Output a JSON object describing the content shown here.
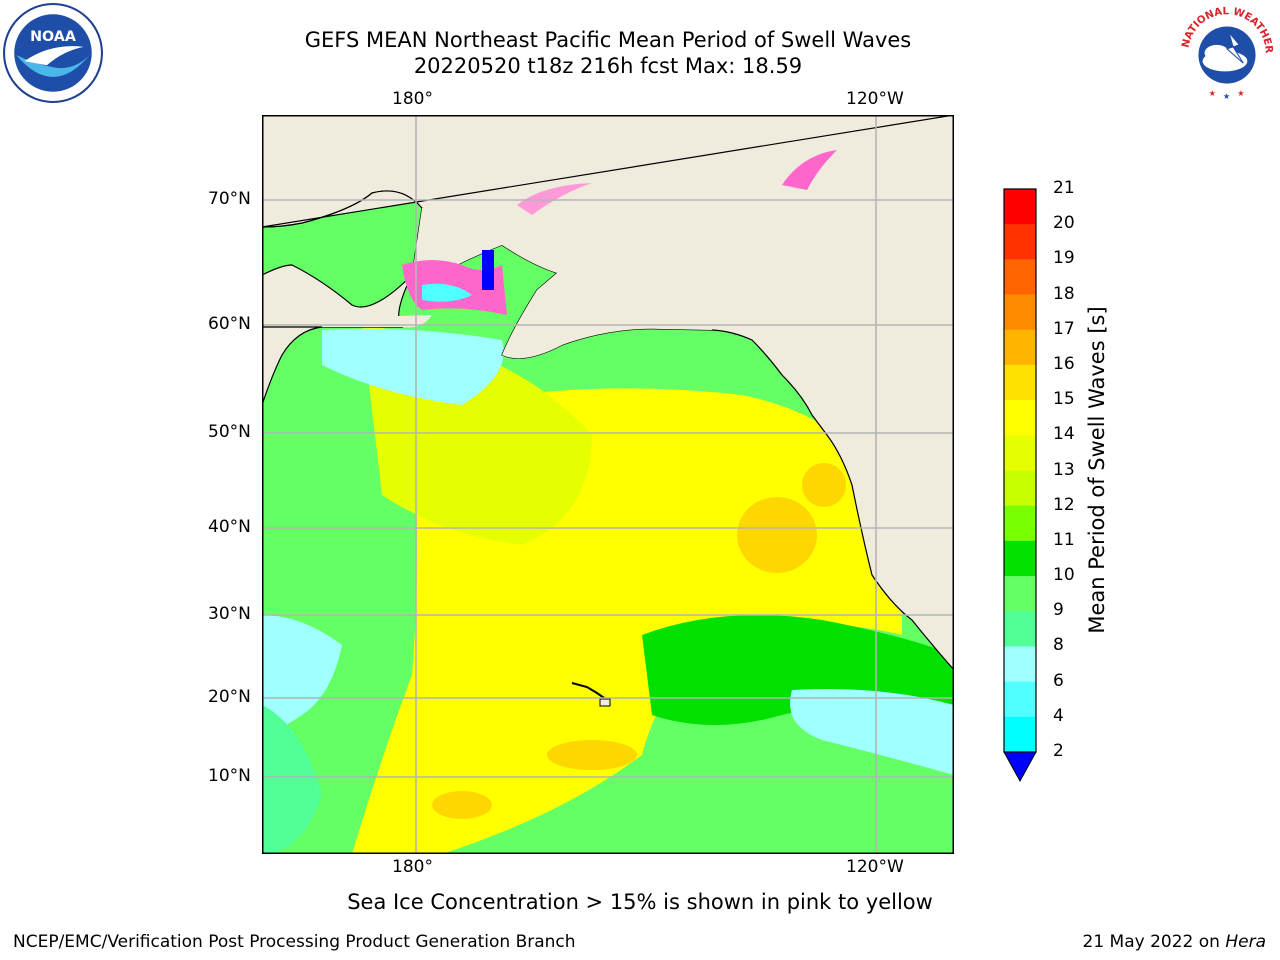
{
  "header": {
    "title_line1": "GEFS MEAN Northeast Pacific Mean Period of Swell Waves",
    "title_line2": "20220520 t18z 216h fcst   Max: 18.59"
  },
  "logos": {
    "left": "noaa-logo",
    "right": "national-weather-service-logo",
    "left_text": "NOAA",
    "right_text": "NATIONAL WEATHER SERVICE"
  },
  "map": {
    "lon_labels_top": [
      "180°",
      "120°W"
    ],
    "lon_labels_bottom": [
      "180°",
      "120°W"
    ],
    "lat_labels": [
      "70°N",
      "60°N",
      "50°N",
      "40°N",
      "30°N",
      "20°N",
      "10°N"
    ],
    "gridlines": true,
    "land_color": "#efecdd",
    "ocean_colors": [
      "#64ff64",
      "#ffff00",
      "#ffd700",
      "#00e100",
      "#a0ffff"
    ]
  },
  "colorbar": {
    "label": "Mean Period of Swell Waves [s]",
    "ticks": [
      "21",
      "20",
      "19",
      "18",
      "17",
      "16",
      "15",
      "14",
      "13",
      "12",
      "11",
      "10",
      "9",
      "8",
      "6",
      "4",
      "2"
    ],
    "colors": [
      "#ff0000",
      "#ff3200",
      "#ff6400",
      "#ff8c00",
      "#ffb400",
      "#ffe100",
      "#ffff00",
      "#e6ff00",
      "#c8ff00",
      "#78ff00",
      "#00e100",
      "#64ff64",
      "#50ff96",
      "#a0ffff",
      "#50ffff",
      "#00ffff",
      "#00c8ff",
      "#0070ff"
    ],
    "extend_color": "#0000ff"
  },
  "footer": {
    "note": "Sea Ice Concentration > 15% is shown in pink to yellow",
    "credit_left": "NCEP/EMC/Verification Post Processing Product Generation Branch",
    "credit_date": "21 May 2022 on",
    "credit_host": "Hera"
  }
}
